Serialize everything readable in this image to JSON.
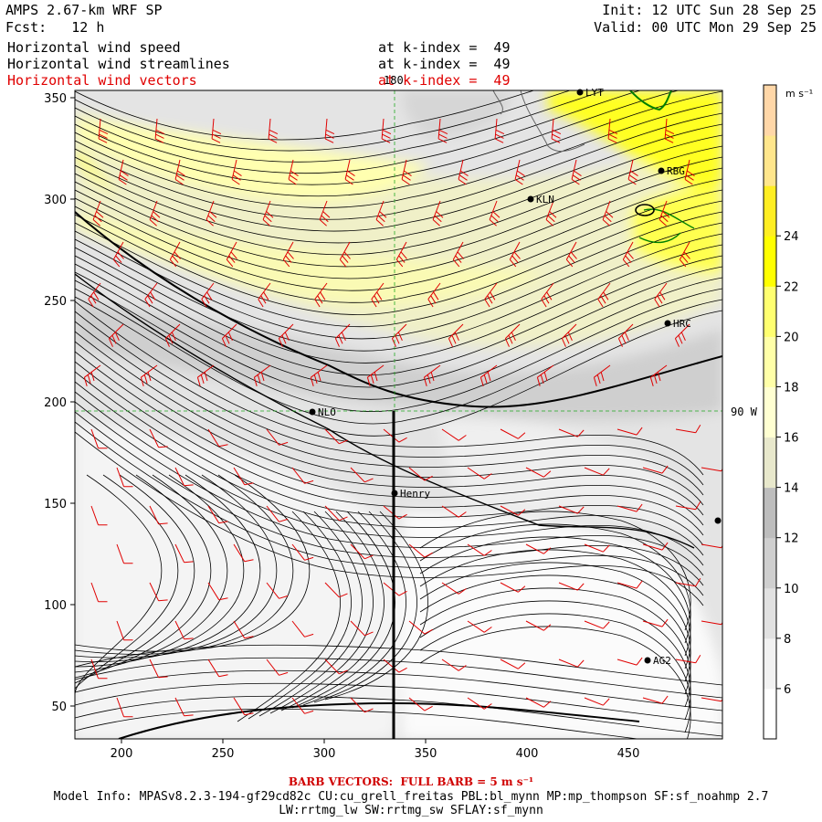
{
  "header": {
    "model": "AMPS 2.67-km WRF SP",
    "fcst": "Fcst:   12 h",
    "init": "Init: 12 UTC Sun 28 Sep 25",
    "valid": "Valid: 00 UTC Mon 29 Sep 25",
    "fields": [
      {
        "label": "Horizontal wind speed",
        "level": "at k-index =  49",
        "color": "#000000"
      },
      {
        "label": "Horizontal wind streamlines",
        "level": "at k-index =  49",
        "color": "#000000"
      },
      {
        "label": "Horizontal wind vectors",
        "level": "at k-index =  49",
        "color": "#e00000"
      }
    ]
  },
  "map": {
    "x_ticks": [
      "200",
      "250",
      "300",
      "350",
      "400",
      "450"
    ],
    "y_ticks": [
      "350",
      "300",
      "250",
      "200",
      "150",
      "100",
      "50"
    ],
    "meridian_label": "180",
    "parallel_label": "90 W",
    "stations": [
      {
        "name": "LYT"
      },
      {
        "name": "RBG"
      },
      {
        "name": "KLN"
      },
      {
        "name": "HRC"
      },
      {
        "name": "NLO"
      },
      {
        "name": "Henry"
      },
      {
        "name": "AG2"
      },
      {
        "name": ""
      }
    ]
  },
  "colorbar": {
    "unit": "m s⁻¹",
    "tick_labels": [
      "6",
      "8",
      "10",
      "12",
      "14",
      "16",
      "18",
      "20",
      "22",
      "24"
    ],
    "colors": [
      "#ffffff",
      "#f2f2f2",
      "#e1e1e1",
      "#cfcfcf",
      "#bdbdbd",
      "#e8e8cc",
      "#ffffd2",
      "#ffffa8",
      "#ffff70",
      "#ffff00",
      "#ffee22",
      "#ffe68c",
      "#ffd7a8"
    ]
  },
  "footer": {
    "barb_note": "BARB VECTORS:  FULL BARB = 5 m s⁻¹",
    "model_info": "Model Info: MPASv8.2.3-194-gf29cd82c CU:cu_grell_freitas PBL:bl_mynn MP:mp_thompson SF:sf_noahmp 2.7",
    "model_info2": "LW:rrtmg_lw SW:rrtmg_sw SFLAY:sf_mynn"
  }
}
